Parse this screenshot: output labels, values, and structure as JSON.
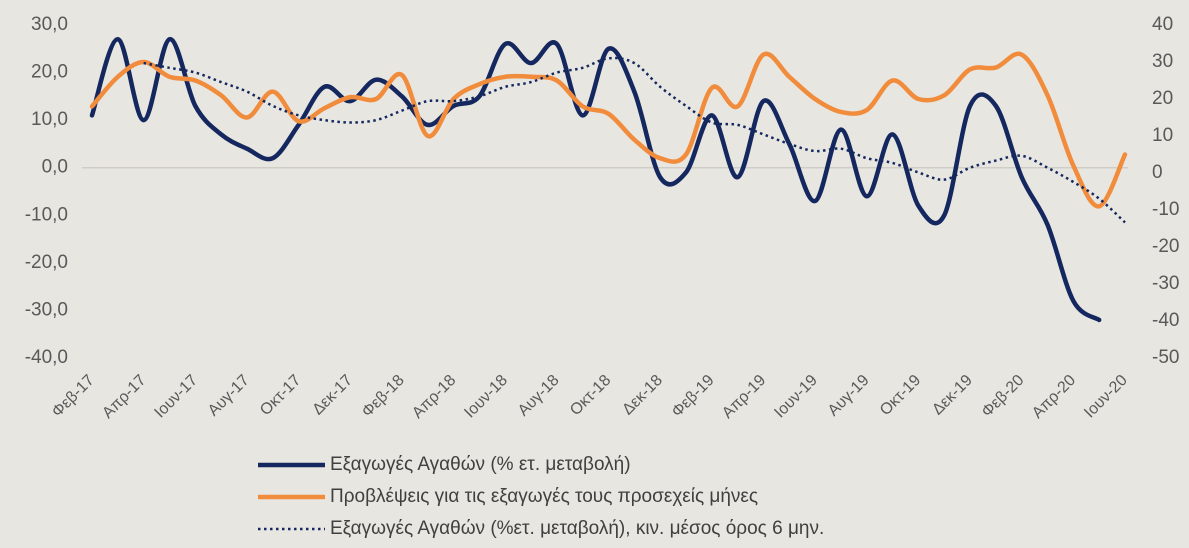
{
  "chart_data": {
    "type": "line",
    "categories": [
      "Φεβ-17",
      null,
      "Απρ-17",
      null,
      "Ιουν-17",
      null,
      "Αυγ-17",
      null,
      "Οκτ-17",
      null,
      "Δεκ-17",
      null,
      "Φεβ-18",
      null,
      "Απρ-18",
      null,
      "Ιουν-18",
      null,
      "Αυγ-18",
      null,
      "Οκτ-18",
      null,
      "Δεκ-18",
      null,
      "Φεβ-19",
      null,
      "Απρ-19",
      null,
      "Ιουν-19",
      null,
      "Αυγ-19",
      null,
      "Οκτ-19",
      null,
      "Δεκ-19",
      null,
      "Φεβ-20",
      null,
      "Απρ-20",
      null,
      "Ιουν-20"
    ],
    "series": [
      {
        "name": "Εξαγωγές Αγαθών (% ετ. μεταβολή)",
        "color": "#14285f",
        "style": "solid",
        "axis": "y",
        "values": [
          11,
          27,
          10,
          27,
          13,
          7,
          4,
          2,
          9,
          17,
          14,
          18.5,
          15,
          9,
          13,
          15,
          26,
          22,
          26,
          11,
          25,
          16,
          -2,
          -1,
          11,
          -2,
          14,
          5,
          -7,
          8,
          -6,
          7,
          -8,
          -10,
          13,
          13,
          -2,
          -12,
          -28,
          -32,
          null
        ]
      },
      {
        "name": "Προβλέψεις για τις εξαγωγές τους προσεχείς μήνες",
        "color": "#f08c3c",
        "style": "solid",
        "axis": "y2",
        "values": [
          18,
          26,
          30,
          26,
          25,
          21,
          15,
          22,
          14,
          17.5,
          20.5,
          20,
          26.5,
          10,
          20,
          24,
          26,
          26,
          25,
          18,
          16,
          9,
          4,
          5,
          23,
          18,
          32,
          26,
          20,
          16.5,
          17,
          25,
          20,
          21,
          28,
          28.5,
          32,
          21,
          2,
          -9,
          5
        ]
      },
      {
        "name": "Εξαγωγές Αγαθών (%ετ. μεταβολή), κιν. μέσος όρος 6 μην.",
        "color": "#14285f",
        "style": "dotted",
        "axis": "y",
        "values": [
          null,
          null,
          22,
          21,
          20,
          18,
          16,
          13,
          11,
          10,
          9.5,
          10,
          12,
          14,
          14,
          15,
          17,
          18,
          20,
          21,
          23,
          22,
          17,
          13,
          9.5,
          9,
          7,
          5,
          3.5,
          4,
          2,
          1,
          -1,
          -2.5,
          0,
          1.5,
          2.5,
          0,
          -3,
          -6.5,
          -11.5
        ]
      }
    ],
    "ylim": [
      -40,
      30
    ],
    "yticks": [
      {
        "value": 30,
        "label": "30,0"
      },
      {
        "value": 20,
        "label": "20,0"
      },
      {
        "value": 10,
        "label": "10,0"
      },
      {
        "value": 0,
        "label": "0,0"
      },
      {
        "value": -10,
        "label": "-10,0"
      },
      {
        "value": -20,
        "label": "-20,0"
      },
      {
        "value": -30,
        "label": "-30,0"
      },
      {
        "value": -40,
        "label": "-40,0"
      }
    ],
    "y2lim": [
      -50,
      40
    ],
    "y2ticks": [
      40,
      30,
      20,
      10,
      0,
      -10,
      -20,
      -30,
      -40,
      -50
    ],
    "zero_line": true,
    "legend": "bottom"
  }
}
